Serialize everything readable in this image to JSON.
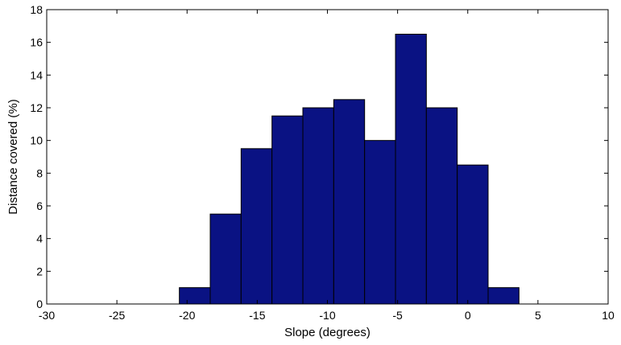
{
  "chart_data": {
    "type": "bar",
    "title": "",
    "xlabel": "Slope (degrees)",
    "ylabel": "Distance covered (%)",
    "xlim": [
      -30,
      10
    ],
    "ylim": [
      0,
      18
    ],
    "x_ticks": [
      "-30",
      "-25",
      "-20",
      "-15",
      "-10",
      "-5",
      "0",
      "5",
      "10"
    ],
    "y_ticks": [
      "0",
      "2",
      "4",
      "6",
      "8",
      "10",
      "12",
      "14",
      "16",
      "18"
    ],
    "bin_edges": [
      -20.55,
      -18.35,
      -16.15,
      -13.95,
      -11.75,
      -9.55,
      -7.35,
      -5.15,
      -2.95,
      -0.75,
      1.45,
      3.65
    ],
    "values": [
      1,
      5.5,
      9.5,
      11.5,
      12,
      12.5,
      10,
      16.5,
      12,
      8.5,
      1
    ],
    "bar_color": "#0a1283",
    "bar_edge_color": "#000000",
    "grid": false,
    "legend": "none"
  }
}
